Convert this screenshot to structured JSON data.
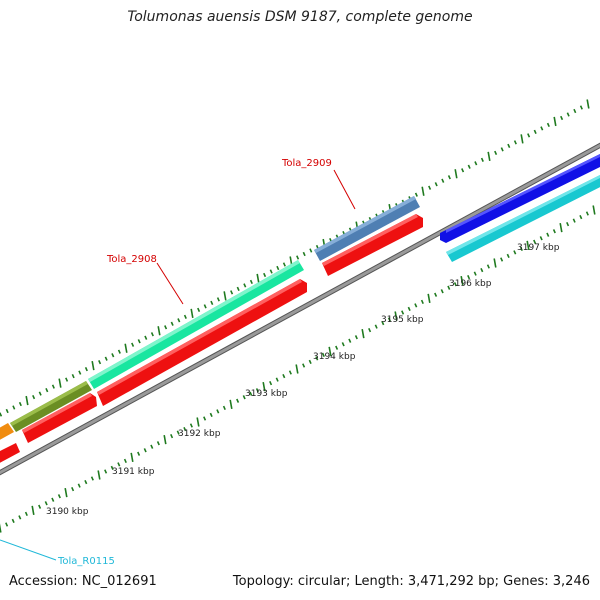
{
  "title": "Tolumonas auensis DSM 9187, complete genome",
  "footer": {
    "accession": "Accession: NC_012691",
    "summary": "Topology: circular; Length: 3,471,292 bp; Genes: 3,246"
  },
  "scale_labels": [
    "3190 kbp",
    "3191 kbp",
    "3192 kbp",
    "3193 kbp",
    "3194 kbp",
    "3195 kbp",
    "3196 kbp",
    "3197 kbp"
  ],
  "gene_labels": {
    "tola_2908": "Tola_2908",
    "tola_2909": "Tola_2909",
    "tola_r0115": "Tola_R0115"
  },
  "colors": {
    "red_label": "#d40000",
    "cyan_label": "#20b8d8",
    "tick_green": "#1f7a1f",
    "backbone": "#8a8a8a"
  }
}
